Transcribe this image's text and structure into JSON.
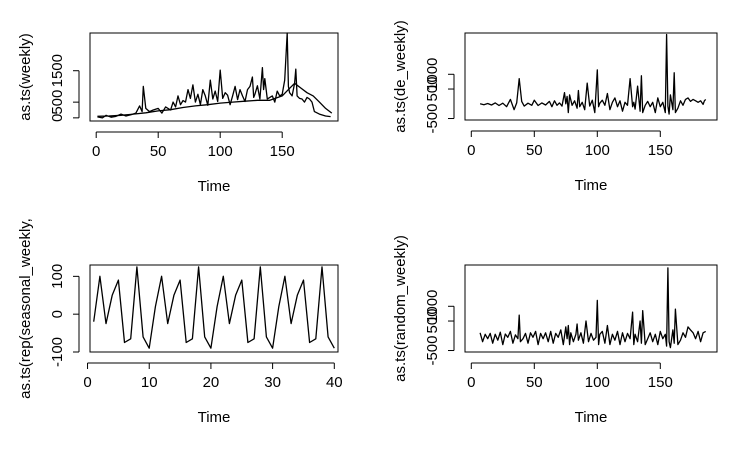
{
  "chart_data": [
    {
      "type": "line",
      "xlabel": "Time",
      "ylabel": "as.ts(weekly)",
      "xlim": [
        -5,
        195
      ],
      "ylim": [
        -100,
        2700
      ],
      "xticks": [
        0,
        50,
        100,
        150
      ],
      "yticks": [
        0,
        500,
        1500
      ],
      "series": [
        {
          "x": [
            1,
            5,
            8,
            12,
            16,
            20,
            24,
            28,
            32,
            35,
            37,
            38,
            40,
            43,
            46,
            50,
            53,
            56,
            60,
            62,
            64,
            66,
            68,
            70,
            72,
            74,
            76,
            78,
            80,
            82,
            84,
            86,
            88,
            90,
            92,
            94,
            96,
            98,
            100,
            102,
            104,
            106,
            108,
            110,
            112,
            114,
            116,
            118,
            120,
            122,
            124,
            126,
            127,
            128,
            130,
            132,
            134,
            135,
            136,
            138,
            140,
            142,
            144,
            146,
            148,
            150,
            152,
            154,
            155,
            156,
            158,
            160,
            161,
            162,
            164,
            166,
            168,
            170,
            172,
            174,
            176,
            180,
            185,
            189
          ],
          "y": [
            30,
            0,
            80,
            20,
            50,
            120,
            60,
            100,
            150,
            380,
            200,
            1000,
            300,
            200,
            250,
            300,
            150,
            350,
            250,
            500,
            350,
            700,
            420,
            550,
            500,
            900,
            620,
            1050,
            500,
            750,
            420,
            900,
            700,
            400,
            1200,
            600,
            850,
            520,
            1520,
            620,
            800,
            720,
            420,
            700,
            1000,
            580,
            900,
            700,
            520,
            900,
            1000,
            1300,
            650,
            750,
            1020,
            600,
            1600,
            900,
            1250,
            600,
            650,
            700,
            500,
            850,
            700,
            750,
            1200,
            2700,
            1000,
            800,
            700,
            1100,
            1550,
            700,
            620,
            600,
            500,
            650,
            600,
            500,
            200,
            120,
            60,
            40
          ]
        },
        {
          "x": [
            1,
            10,
            20,
            30,
            40,
            50,
            60,
            70,
            80,
            90,
            100,
            110,
            120,
            130,
            140,
            150,
            155,
            160,
            165,
            170,
            175,
            180,
            185,
            190
          ],
          "y": [
            50,
            60,
            80,
            120,
            160,
            220,
            260,
            330,
            380,
            420,
            470,
            500,
            530,
            560,
            560,
            700,
            900,
            1100,
            950,
            800,
            700,
            500,
            300,
            150
          ]
        }
      ]
    },
    {
      "type": "line",
      "xlabel": "Time",
      "ylabel": "as.ts(de_weekly)",
      "xlim": [
        -5,
        195
      ],
      "ylim": [
        -550,
        2400
      ],
      "xticks": [
        0,
        50,
        100,
        150
      ],
      "yticks": [
        -500,
        500,
        1000
      ],
      "series": [
        {
          "x": [
            7,
            10,
            13,
            16,
            19,
            22,
            25,
            28,
            31,
            34,
            36,
            38,
            40,
            42,
            45,
            48,
            50,
            53,
            56,
            59,
            62,
            64,
            66,
            68,
            70,
            72,
            74,
            75,
            76,
            77,
            78,
            80,
            82,
            84,
            85,
            86,
            88,
            90,
            92,
            94,
            96,
            98,
            100,
            101,
            102,
            104,
            106,
            108,
            110,
            112,
            114,
            116,
            118,
            120,
            122,
            124,
            126,
            128,
            129,
            130,
            132,
            134,
            135,
            136,
            138,
            140,
            142,
            144,
            146,
            148,
            150,
            152,
            154,
            155,
            156,
            157,
            158,
            160,
            161,
            162,
            164,
            166,
            168,
            170,
            172,
            174,
            176,
            178,
            180,
            182,
            184,
            185,
            186
          ],
          "y": [
            0,
            -30,
            10,
            -40,
            30,
            -60,
            20,
            -100,
            150,
            -200,
            30,
            850,
            80,
            -80,
            20,
            -50,
            120,
            -60,
            30,
            -40,
            80,
            -100,
            100,
            -50,
            30,
            -80,
            380,
            0,
            250,
            -300,
            300,
            -50,
            100,
            -150,
            450,
            -100,
            50,
            -200,
            700,
            -80,
            120,
            -300,
            1150,
            -100,
            20,
            120,
            -50,
            350,
            -200,
            50,
            200,
            -100,
            100,
            -250,
            50,
            -50,
            850,
            -100,
            50,
            -180,
            600,
            -250,
            950,
            -300,
            -50,
            80,
            -100,
            50,
            -300,
            200,
            -100,
            50,
            -300,
            2350,
            -80,
            -350,
            300,
            -200,
            1050,
            -300,
            -150,
            100,
            -50,
            150,
            200,
            80,
            150,
            100,
            50,
            100,
            -20,
            100,
            150
          ]
        }
      ]
    },
    {
      "type": "line",
      "xlabel": "Time",
      "ylabel": "as.ts(rep(seasonal_weekly,",
      "xlim": [
        0.4,
        40.6
      ],
      "ylim": [
        -100,
        130
      ],
      "xticks": [
        0,
        10,
        20,
        30,
        40
      ],
      "yticks": [
        -100,
        0,
        100
      ],
      "series": [
        {
          "x": [
            1,
            2,
            3,
            4,
            5,
            6,
            7,
            8,
            9,
            10,
            11,
            12,
            13,
            14,
            15,
            16,
            17,
            18,
            19,
            20,
            21,
            22,
            23,
            24,
            25,
            26,
            27,
            28,
            29,
            30,
            31,
            32,
            33,
            34,
            35,
            36,
            37,
            38,
            39,
            40
          ],
          "y": [
            -20,
            100,
            -25,
            50,
            90,
            -75,
            -65,
            125,
            -60,
            -90,
            20,
            100,
            -25,
            50,
            90,
            -75,
            -65,
            125,
            -60,
            -90,
            20,
            100,
            -25,
            50,
            90,
            -75,
            -65,
            125,
            -60,
            -90,
            20,
            100,
            -25,
            50,
            90,
            -75,
            -65,
            125,
            -60,
            -90
          ]
        }
      ]
    },
    {
      "type": "line",
      "xlabel": "Time",
      "ylabel": "as.ts(random_weekly)",
      "xlim": [
        -5,
        195
      ],
      "ylim": [
        -550,
        2400
      ],
      "xticks": [
        0,
        50,
        100,
        150
      ],
      "yticks": [
        -500,
        500,
        1000
      ],
      "series": [
        {
          "x": [
            7,
            9,
            11,
            13,
            15,
            17,
            19,
            21,
            23,
            25,
            27,
            29,
            31,
            33,
            35,
            37,
            38,
            39,
            41,
            43,
            45,
            47,
            49,
            51,
            53,
            55,
            57,
            59,
            61,
            63,
            65,
            67,
            69,
            71,
            73,
            75,
            76,
            77,
            78,
            79,
            81,
            83,
            84,
            85,
            87,
            89,
            91,
            93,
            95,
            97,
            99,
            100,
            101,
            102,
            104,
            106,
            108,
            110,
            112,
            114,
            116,
            118,
            120,
            122,
            124,
            126,
            128,
            129,
            130,
            132,
            134,
            135,
            136,
            138,
            140,
            142,
            144,
            146,
            148,
            150,
            152,
            154,
            155,
            156,
            157,
            158,
            160,
            161,
            162,
            164,
            166,
            168,
            170,
            172,
            174,
            176,
            178,
            180,
            182,
            184,
            186
          ],
          "y": [
            100,
            -200,
            50,
            -100,
            80,
            -250,
            50,
            -150,
            120,
            -300,
            60,
            -50,
            150,
            -250,
            30,
            -100,
            700,
            -200,
            -100,
            80,
            -250,
            100,
            -50,
            150,
            -300,
            80,
            -100,
            100,
            -200,
            150,
            -250,
            80,
            -50,
            200,
            -300,
            300,
            -100,
            350,
            -300,
            100,
            -200,
            50,
            400,
            -150,
            100,
            -250,
            500,
            -200,
            80,
            -150,
            -50,
            1200,
            -300,
            50,
            150,
            -250,
            350,
            -300,
            50,
            -150,
            150,
            -300,
            100,
            -200,
            80,
            -100,
            800,
            -300,
            50,
            -200,
            500,
            -250,
            850,
            -300,
            -100,
            100,
            -200,
            50,
            -300,
            150,
            -100,
            50,
            -350,
            2300,
            -200,
            -400,
            200,
            -250,
            900,
            -300,
            -150,
            100,
            -50,
            300,
            200,
            100,
            -100,
            150,
            -200,
            100,
            150
          ]
        }
      ]
    }
  ]
}
